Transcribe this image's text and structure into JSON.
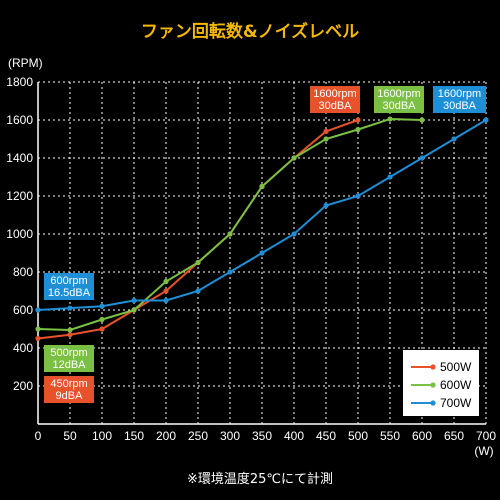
{
  "chart_data": {
    "type": "line",
    "title": "ファン回転数&ノイズレベル",
    "ylabel": "(RPM)",
    "xlabel": "(W)",
    "note": "※環境温度25℃にて計測",
    "xlim": [
      0,
      700
    ],
    "ylim": [
      0,
      1800
    ],
    "x_ticks": [
      0,
      50,
      100,
      150,
      200,
      250,
      300,
      350,
      400,
      450,
      500,
      550,
      600,
      650,
      700
    ],
    "y_ticks": [
      200,
      400,
      600,
      800,
      1000,
      1200,
      1400,
      1600,
      1800
    ],
    "grid": true,
    "legend_position": "bottom-right",
    "series": [
      {
        "name": "500W",
        "color": "#e8522a",
        "x": [
          0,
          50,
          100,
          150,
          200,
          250,
          300,
          350,
          400,
          450,
          500
        ],
        "y": [
          450,
          470,
          500,
          600,
          700,
          850,
          1000,
          1250,
          1400,
          1540,
          1600
        ]
      },
      {
        "name": "600W",
        "color": "#7ac143",
        "x": [
          0,
          50,
          100,
          150,
          200,
          250,
          300,
          350,
          400,
          450,
          500,
          550,
          600
        ],
        "y": [
          500,
          495,
          550,
          600,
          750,
          850,
          1000,
          1250,
          1400,
          1500,
          1550,
          1605,
          1600
        ]
      },
      {
        "name": "700W",
        "color": "#1e8fd6",
        "x": [
          0,
          50,
          100,
          150,
          200,
          250,
          300,
          350,
          400,
          450,
          500,
          550,
          600,
          650,
          700
        ],
        "y": [
          600,
          610,
          620,
          650,
          650,
          700,
          800,
          900,
          1000,
          1150,
          1200,
          1300,
          1400,
          1500,
          1600
        ]
      }
    ],
    "annotations": [
      {
        "lines": [
          "600rpm",
          "16.5dBA"
        ],
        "color": "#1e8fd6"
      },
      {
        "lines": [
          "500rpm",
          "12dBA"
        ],
        "color": "#7ac143"
      },
      {
        "lines": [
          "450rpm",
          "9dBA"
        ],
        "color": "#e8522a"
      },
      {
        "lines": [
          "1600rpm",
          "30dBA"
        ],
        "color": "#e8522a"
      },
      {
        "lines": [
          "1600rpm",
          "30dBA"
        ],
        "color": "#7ac143"
      },
      {
        "lines": [
          "1600rpm",
          "30dBA"
        ],
        "color": "#1e8fd6"
      }
    ]
  }
}
